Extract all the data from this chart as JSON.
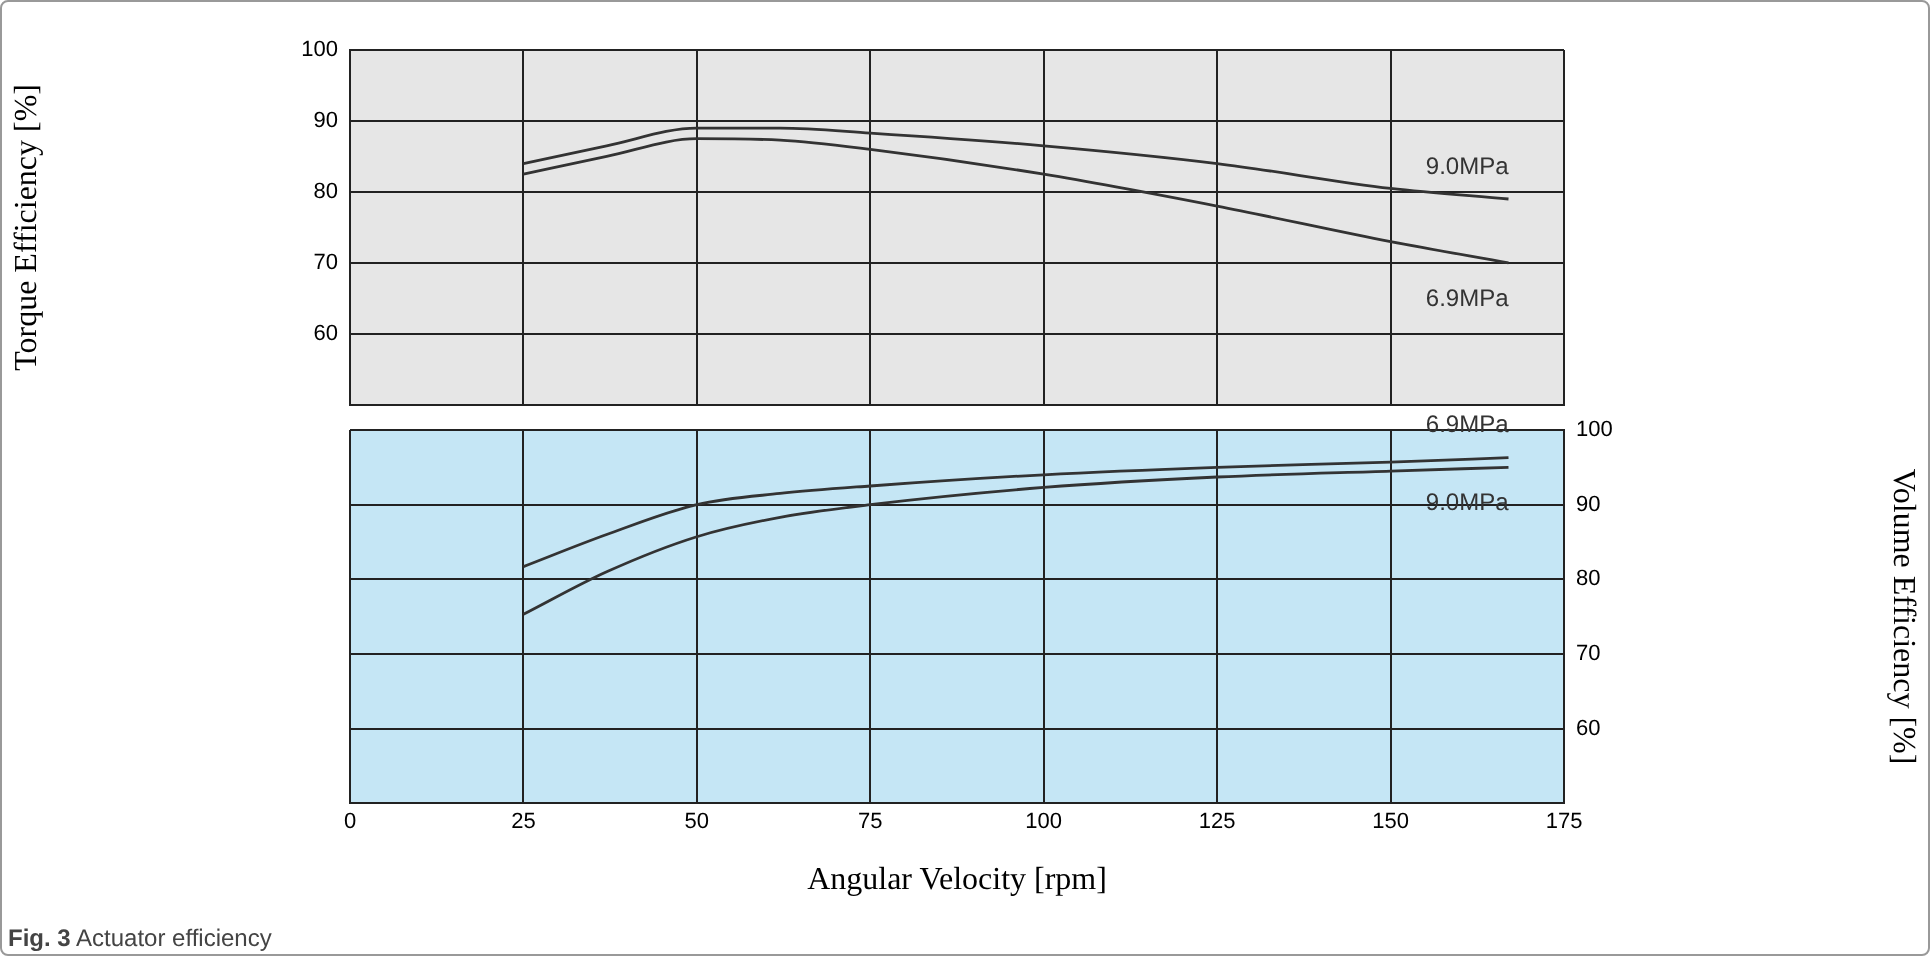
{
  "chart_data": [
    {
      "type": "line",
      "ylabel": "Torque Efficiency [%]",
      "xlim": [
        0,
        175
      ],
      "xticks": [
        0,
        25,
        50,
        75,
        100,
        125,
        150,
        175
      ],
      "ylim": [
        50,
        100
      ],
      "yticks": [
        60,
        70,
        80,
        90,
        100
      ],
      "tick_labels": "y",
      "grid": true,
      "marker": "none",
      "series": [
        {
          "name": "9.0MPa",
          "color": "#333333",
          "x": [
            25,
            37,
            50,
            62,
            75,
            100,
            125,
            150,
            167
          ],
          "values": [
            84,
            86.5,
            89,
            89,
            88.3,
            86.5,
            84,
            80.5,
            79
          ]
        },
        {
          "name": "6.9MPa",
          "color": "#333333",
          "x": [
            25,
            37,
            50,
            62,
            75,
            100,
            125,
            150,
            167
          ],
          "values": [
            82.5,
            85,
            87.5,
            87.3,
            86,
            82.5,
            78,
            73,
            70
          ]
        }
      ]
    },
    {
      "type": "line",
      "xlabel": "Angular Velocity [rpm]",
      "y2label": "Volume Efficiency [%]",
      "xlim": [
        0,
        175
      ],
      "xticks": [
        0,
        25,
        50,
        75,
        100,
        125,
        150,
        175
      ],
      "y2lim": [
        50,
        100
      ],
      "y2ticks": [
        60,
        70,
        80,
        90,
        100
      ],
      "grid": true,
      "marker": "none",
      "annotations": [
        "Fig. 3  Actuator efficiency"
      ],
      "series": [
        {
          "name": "6.9MPa",
          "color": "#333333",
          "axis": "y2",
          "x": [
            25,
            37,
            50,
            62,
            75,
            100,
            125,
            150,
            167
          ],
          "values": [
            81.7,
            86,
            90,
            91.5,
            92.5,
            94,
            95,
            95.7,
            96.3
          ]
        },
        {
          "name": "9.0MPa",
          "color": "#333333",
          "axis": "y2",
          "x": [
            25,
            37,
            50,
            62,
            75,
            100,
            125,
            150,
            167
          ],
          "values": [
            75.3,
            81,
            85.7,
            88.3,
            90,
            92.3,
            93.7,
            94.5,
            95
          ]
        }
      ]
    }
  ]
}
